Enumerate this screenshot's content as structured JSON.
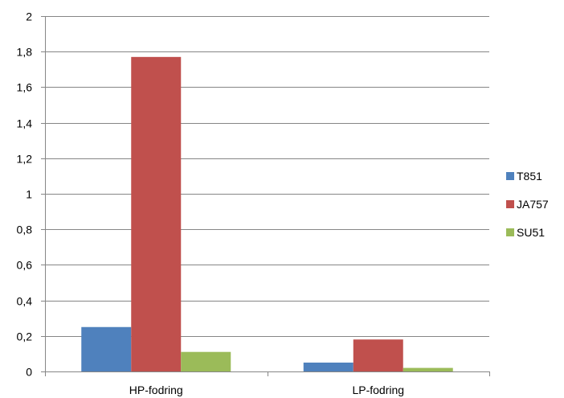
{
  "chart_data": {
    "type": "bar",
    "categories": [
      "HP-fodring",
      "LP-fodring"
    ],
    "series": [
      {
        "name": "T851",
        "values": [
          0.25,
          0.05
        ],
        "color": "#4F81BD"
      },
      {
        "name": "JA757",
        "values": [
          1.77,
          0.18
        ],
        "color": "#C0504D"
      },
      {
        "name": "SU51",
        "values": [
          0.11,
          0.02
        ],
        "color": "#9BBB59"
      }
    ],
    "ylim": [
      0,
      2
    ],
    "yticks": [
      0,
      0.2,
      0.4,
      0.6,
      0.8,
      1,
      1.2,
      1.4,
      1.6,
      1.8,
      2
    ],
    "ytick_labels": [
      "0",
      "0,2",
      "0,4",
      "0,6",
      "0,8",
      "1",
      "1,2",
      "1,4",
      "1,6",
      "1,8",
      "2"
    ],
    "grid": true,
    "legend": "right",
    "title": "",
    "xlabel": "",
    "ylabel": ""
  }
}
